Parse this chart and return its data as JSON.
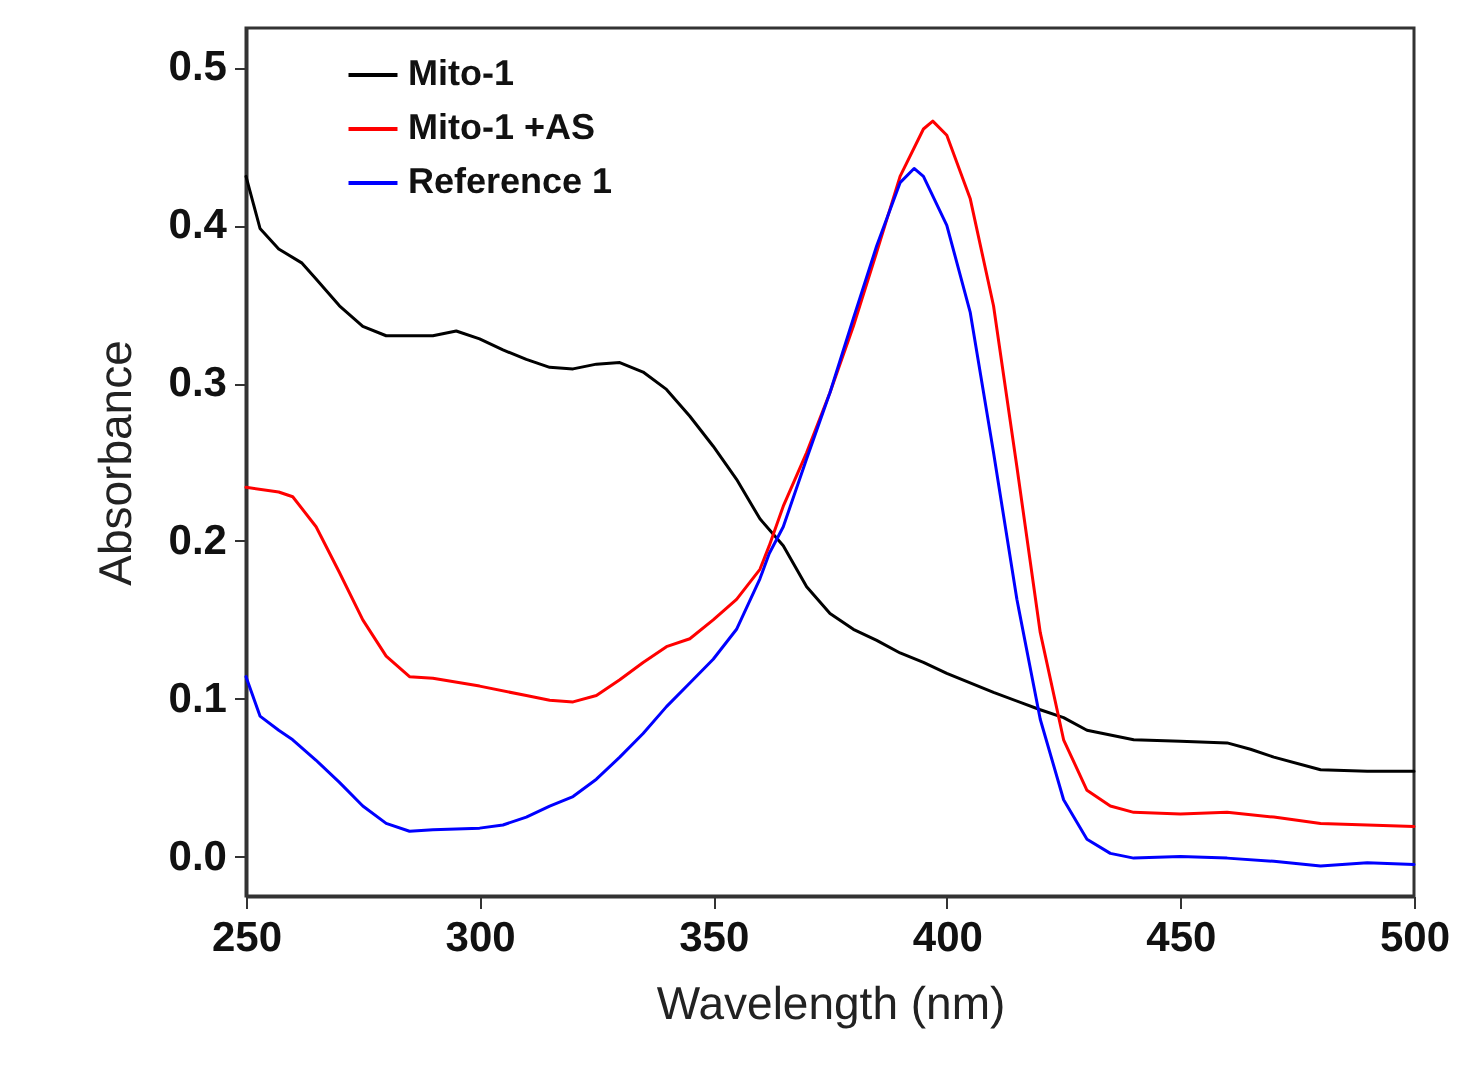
{
  "chart_data": {
    "type": "line",
    "xlabel": "Wavelength (nm)",
    "ylabel": "Absorbance",
    "xlim": [
      250,
      500
    ],
    "xticks": [
      250,
      300,
      350,
      400,
      450,
      500
    ],
    "ylim": [
      -0.025,
      0.525
    ],
    "yticks": [
      {
        "value": 0,
        "label": "0.0"
      },
      0.1,
      0.2,
      0.3,
      0.4,
      0.5
    ],
    "grid": false,
    "legend": "top left",
    "marker": "none",
    "line_style": "solid",
    "series": [
      {
        "name": "Mito-1",
        "color": "#000000",
        "x": [
          250,
          253,
          257,
          262,
          265,
          270,
          275,
          280,
          290,
          295,
          300,
          305,
          310,
          315,
          320,
          325,
          330,
          335,
          340,
          345,
          350,
          355,
          360,
          365,
          370,
          375,
          380,
          385,
          390,
          395,
          400,
          410,
          420,
          425,
          430,
          440,
          450,
          460,
          465,
          470,
          480,
          490,
          500
        ],
        "values": [
          0.431,
          0.398,
          0.385,
          0.376,
          0.366,
          0.349,
          0.336,
          0.33,
          0.33,
          0.333,
          0.328,
          0.321,
          0.315,
          0.31,
          0.309,
          0.312,
          0.313,
          0.307,
          0.296,
          0.279,
          0.26,
          0.239,
          0.214,
          0.197,
          0.171,
          0.154,
          0.144,
          0.137,
          0.129,
          0.123,
          0.116,
          0.104,
          0.093,
          0.088,
          0.08,
          0.074,
          0.073,
          0.072,
          0.068,
          0.063,
          0.055,
          0.054,
          0.054
        ]
      },
      {
        "name": "Mito-1 +AS",
        "color": "#ff0000",
        "x": [
          250,
          257,
          260,
          265,
          270,
          275,
          280,
          285,
          290,
          300,
          310,
          315,
          320,
          325,
          330,
          335,
          340,
          345,
          350,
          355,
          360,
          362,
          365,
          370,
          375,
          380,
          385,
          390,
          395,
          397,
          400,
          405,
          410,
          415,
          420,
          425,
          430,
          435,
          440,
          450,
          460,
          470,
          480,
          490,
          500
        ],
        "values": [
          0.234,
          0.231,
          0.228,
          0.209,
          0.18,
          0.15,
          0.127,
          0.114,
          0.113,
          0.108,
          0.102,
          0.099,
          0.098,
          0.102,
          0.112,
          0.123,
          0.133,
          0.138,
          0.15,
          0.163,
          0.182,
          0.197,
          0.222,
          0.256,
          0.294,
          0.336,
          0.383,
          0.431,
          0.461,
          0.466,
          0.457,
          0.417,
          0.349,
          0.247,
          0.142,
          0.074,
          0.042,
          0.032,
          0.028,
          0.027,
          0.028,
          0.025,
          0.021,
          0.02,
          0.019
        ]
      },
      {
        "name": "Reference 1",
        "color": "#0000ff",
        "x": [
          250,
          253,
          257,
          260,
          265,
          270,
          275,
          280,
          285,
          290,
          300,
          305,
          310,
          315,
          320,
          325,
          330,
          335,
          340,
          345,
          350,
          355,
          360,
          362,
          365,
          370,
          375,
          380,
          385,
          390,
          393,
          395,
          400,
          405,
          410,
          415,
          420,
          425,
          430,
          435,
          440,
          450,
          460,
          470,
          480,
          490,
          500
        ],
        "values": [
          0.114,
          0.089,
          0.08,
          0.074,
          0.061,
          0.047,
          0.032,
          0.021,
          0.016,
          0.017,
          0.018,
          0.02,
          0.025,
          0.032,
          0.038,
          0.049,
          0.063,
          0.078,
          0.095,
          0.11,
          0.125,
          0.144,
          0.176,
          0.192,
          0.209,
          0.252,
          0.294,
          0.341,
          0.387,
          0.427,
          0.436,
          0.431,
          0.4,
          0.345,
          0.256,
          0.163,
          0.087,
          0.036,
          0.011,
          0.002,
          -0.001,
          0.0,
          -0.001,
          -0.003,
          -0.006,
          -0.004,
          -0.005
        ]
      }
    ]
  }
}
